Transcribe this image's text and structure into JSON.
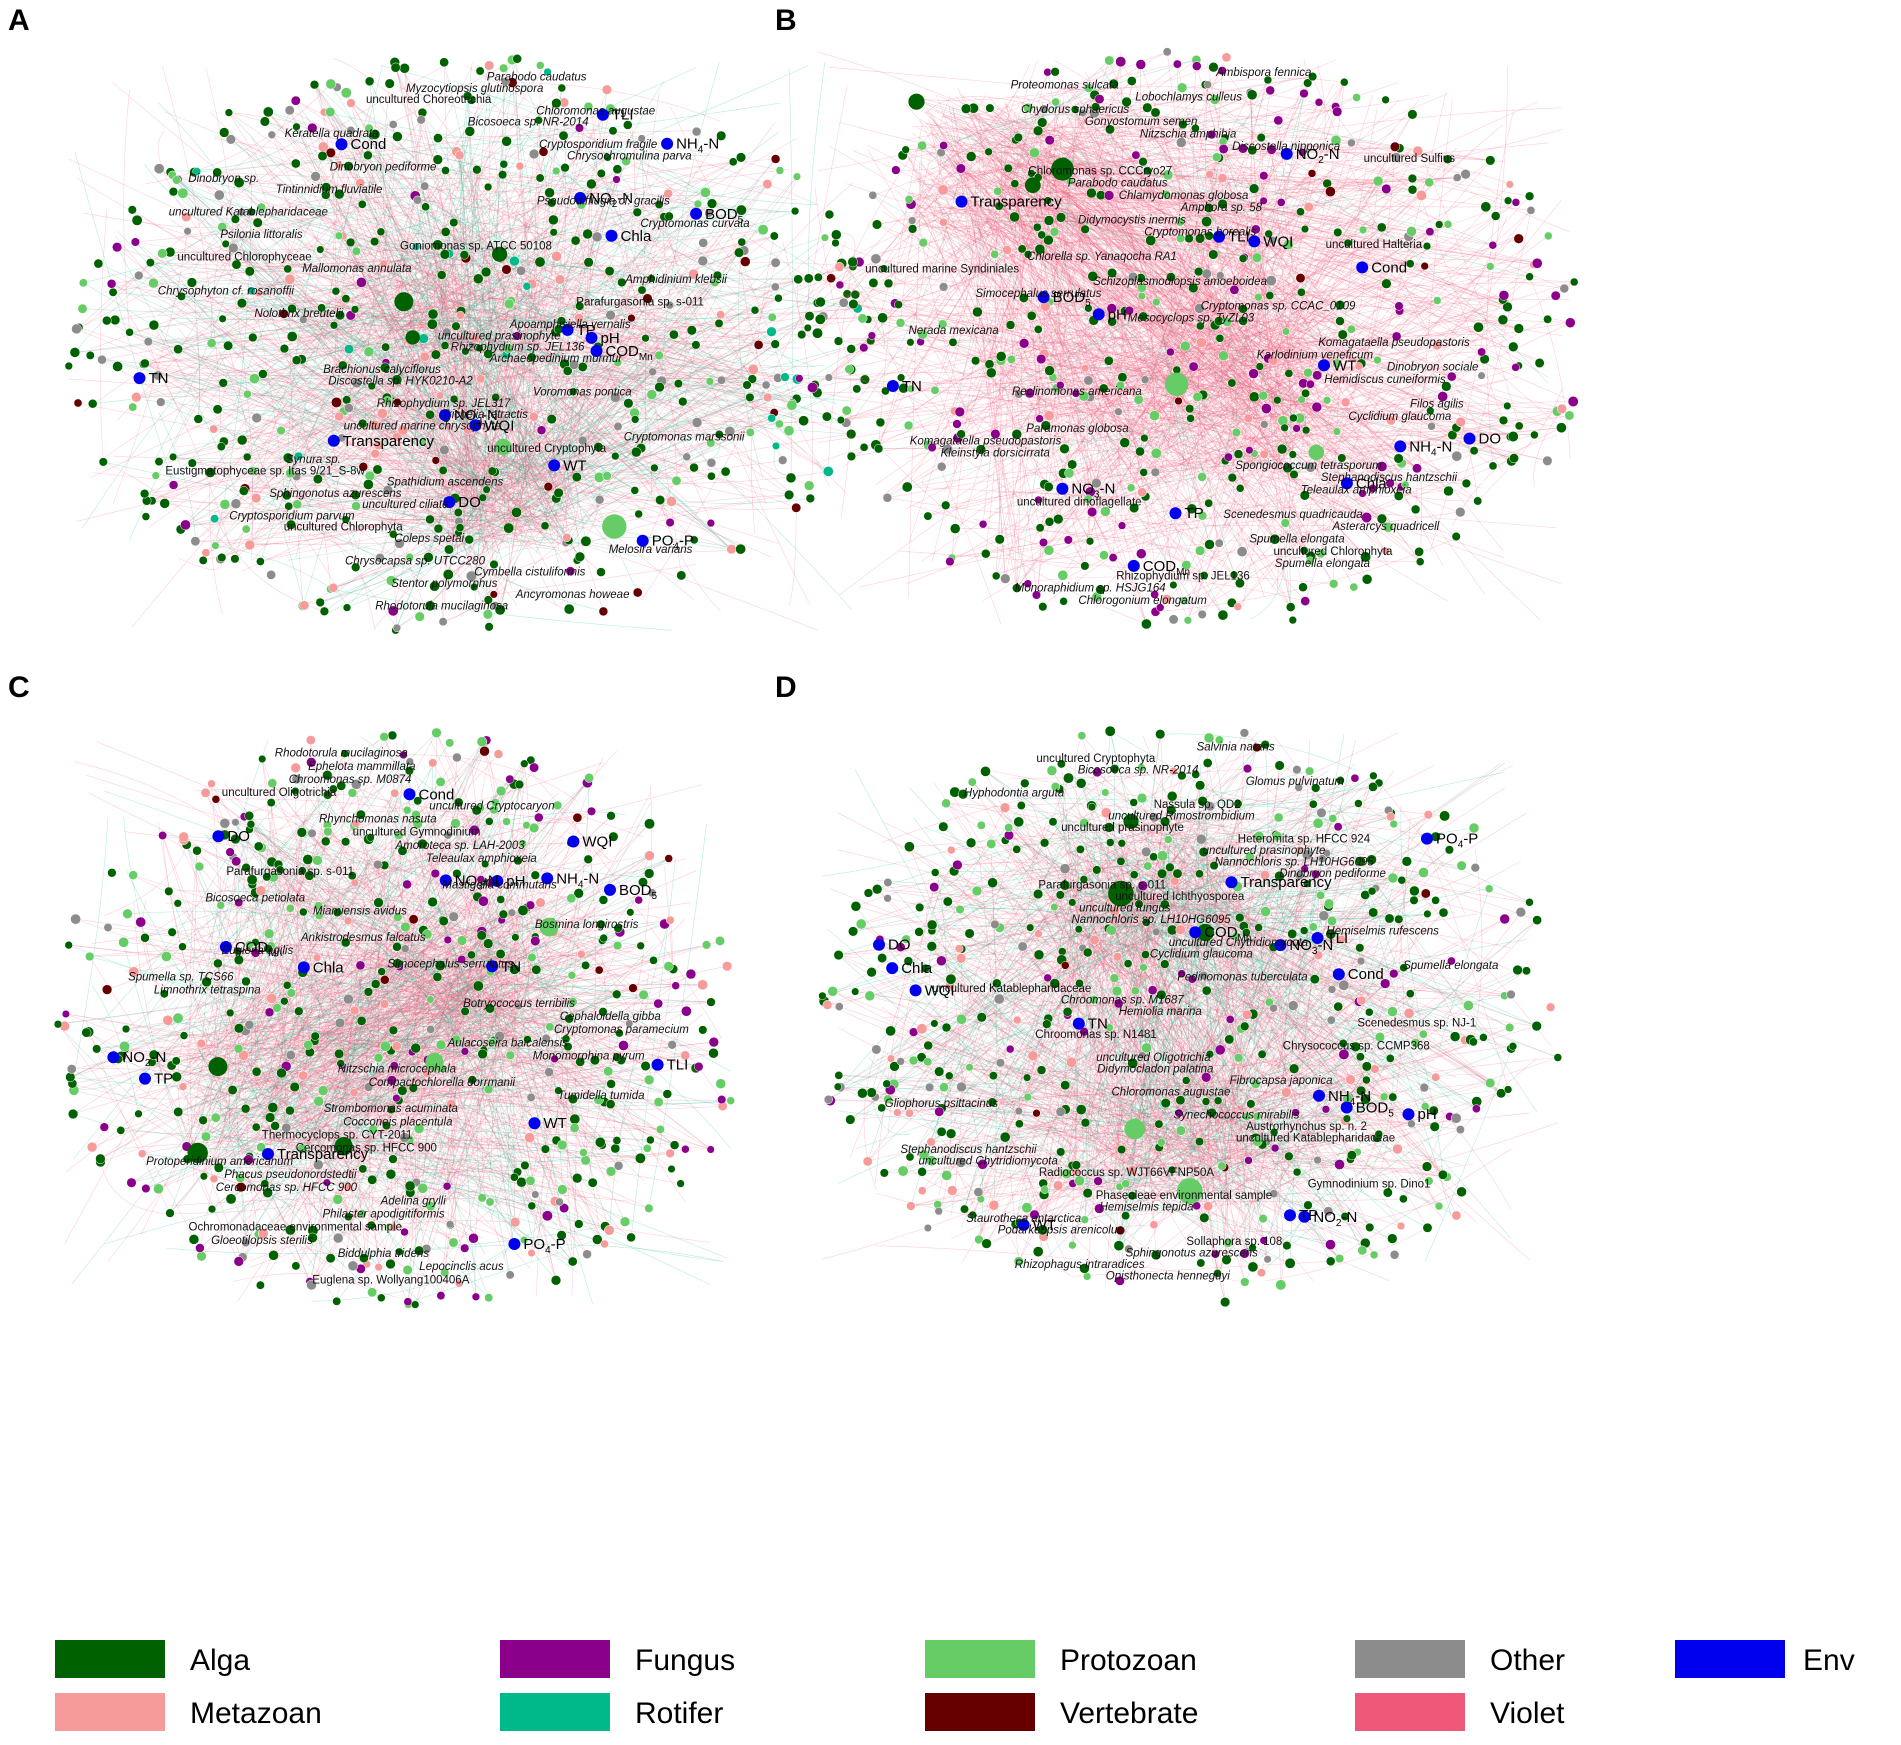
{
  "colors": {
    "alga": "#006100",
    "metazoan": "#f79a9a",
    "fungus": "#8b008b",
    "rotifer": "#00b98a",
    "protozoan": "#66cc66",
    "vertebrate": "#660000",
    "other": "#8c8c8c",
    "violet": "#f0587a",
    "env": "#0000ee"
  },
  "legend": [
    {
      "label": "Alga",
      "color": "#006100"
    },
    {
      "label": "Metazoan",
      "color": "#f79a9a"
    },
    {
      "label": "Fungus",
      "color": "#8b008b"
    },
    {
      "label": "Rotifer",
      "color": "#00b98a"
    },
    {
      "label": "Protozoan",
      "color": "#66cc66"
    },
    {
      "label": "Vertebrate",
      "color": "#660000"
    },
    {
      "label": "Other",
      "color": "#8c8c8c"
    },
    {
      "label": "Violet",
      "color": "#f0587a"
    },
    {
      "label": "Env",
      "color": "#0000ee"
    }
  ],
  "panels": [
    {
      "letter": "A",
      "mix": {
        "alga": 0.55,
        "protozoan": 0.12,
        "metazoan": 0.08,
        "fungus": 0.03,
        "other": 0.14,
        "vertebrate": 0.05,
        "rotifer": 0.03
      },
      "edge_mix": {
        "violet": 0.7,
        "rotifer": 0.3
      },
      "env": [
        {
          "name": "Chla",
          "sub": ""
        },
        {
          "name": "NO",
          "sub": "3",
          "suffix": "-N"
        },
        {
          "name": "PO",
          "sub": "4",
          "suffix": "-P"
        },
        {
          "name": "TP",
          "sub": ""
        },
        {
          "name": "TLI",
          "sub": ""
        },
        {
          "name": "TN",
          "sub": ""
        },
        {
          "name": "WT",
          "sub": ""
        },
        {
          "name": "WQI",
          "sub": ""
        },
        {
          "name": "Cond",
          "sub": ""
        },
        {
          "name": "NO",
          "sub": "2",
          "suffix": "-N"
        },
        {
          "name": "COD",
          "sub": "Mn"
        },
        {
          "name": "BOD",
          "sub": "5"
        },
        {
          "name": "pH",
          "sub": ""
        },
        {
          "name": "Transparency",
          "sub": ""
        },
        {
          "name": "NH",
          "sub": "4",
          "suffix": "-N"
        },
        {
          "name": "DO",
          "sub": ""
        }
      ],
      "taxa": [
        "Parabodo caudatus",
        "Myzocytiopsis glutinospora",
        "uncultured Choreotrichia",
        "Chloromonas augustae",
        "Bicosoeca sp. NR-2014",
        "Keratella quadrata",
        "Cryptosporidium fragile",
        "Chrysochromulina parva",
        "Dinobryon pediforme",
        "Dinobryon sp.",
        "Tintinnidium fluviatile",
        "Pseudodifflugia cf. gracilis",
        "uncultured Katablepharidaceae",
        "Cryptomonas curvata",
        "Psilonia littoralis",
        "Goniomonas sp. ATCC 50108",
        "uncultured Chlorophyceae",
        "Mallomonas annulata",
        "Amphidinium klebsii",
        "Chrysophyton cf. rosanoffii",
        "Parafurgasonia sp. s-011",
        "Nolothrix breutelii",
        "Apoamphisiella vernalis",
        "uncultured prasinophyte",
        "Rhizophydium sp. JEL136",
        "Archaeopedinium murmur",
        "Brachionus calyciflorus",
        "Discostella sp. HYK0210-A2",
        "Voromonas pontica",
        "Rhizophydium sp. JEL317",
        "Trichelia tetractis",
        "uncultured marine chrysophyte",
        "Cryptomonas marssonii",
        "uncultured Cryptophyta",
        "Synura sp.",
        "Eustigmatophyceae sp. Itas 9/21_S-8w",
        "Spathidium ascendens",
        "Sphingonotus azurescens",
        "uncultured ciliate",
        "Cryptosporidium parvum",
        "uncultured Chlorophyta",
        "Coleps spetai",
        "Melosira varians",
        "Chrysocapsa sp. UTCC280",
        "Cymbella cistuliformis",
        "Stentor polymorphus",
        "Ancyromonas howeae",
        "Rhodotorula mucilaginosa"
      ]
    },
    {
      "letter": "B",
      "mix": {
        "alga": 0.5,
        "protozoan": 0.16,
        "fungus": 0.16,
        "metazoan": 0.06,
        "other": 0.1,
        "vertebrate": 0.02
      },
      "edge_mix": {
        "violet": 0.95,
        "rotifer": 0.05
      },
      "env": [
        {
          "name": "pH",
          "sub": ""
        },
        {
          "name": "Transparency",
          "sub": ""
        },
        {
          "name": "Chla",
          "sub": ""
        },
        {
          "name": "Cond",
          "sub": ""
        },
        {
          "name": "TLI",
          "sub": ""
        },
        {
          "name": "WT",
          "sub": ""
        },
        {
          "name": "TP",
          "sub": ""
        },
        {
          "name": "TN",
          "sub": ""
        },
        {
          "name": "DO",
          "sub": ""
        },
        {
          "name": "BOD",
          "sub": "5"
        },
        {
          "name": "WQI",
          "sub": ""
        },
        {
          "name": "NH",
          "sub": "4",
          "suffix": "-N"
        },
        {
          "name": "COD",
          "sub": "Mn"
        },
        {
          "name": "NO",
          "sub": "2",
          "suffix": "-N"
        },
        {
          "name": "NO",
          "sub": "3",
          "suffix": "-N"
        }
      ],
      "taxa": [
        "Ambispora fennica",
        "Proteomonas sulcata",
        "Lobochlamys culleus",
        "Chydorus sphaericus",
        "Gonyostomum semen",
        "Nitzschia amphibia",
        "Discostella nipponica",
        "uncultured Sulfius",
        "Chloromonas sp. CCCryo27",
        "Parabodo caudatus",
        "Chlamydomonas globosa",
        "Amphora sp. 58",
        "Didymocystis inermis",
        "Cryptomonas borealis",
        "uncultured Halteria",
        "Chlorella sp. Yanaqocha RA1",
        "uncultured marine Syndiniales",
        "Schizoplasmodiopsis amoeboidea",
        "Simocephalus serrulatus",
        "Cryptomonas sp. CCAC_0109",
        "Mesocyclops sp. TyZL03",
        "Nerada mexicana",
        "Komagataella pseudopastoris",
        "Karlodinium veneficum",
        "Dinobryon sociale",
        "Hemidiscus cuneiformis",
        "Reclinomonas americana",
        "Filos agilis",
        "Cyclidium glaucoma",
        "Paramonas globosa",
        "Komagataella pseudopastoris",
        "Kleinstyla dorsicirrata",
        "Spongiococcum tetrasporum",
        "Stephanodiscus hantzschii",
        "Teleaulax amphioxeia",
        "uncultured dinoflagellate",
        "Scenedesmus quadricauda",
        "Asterarcys quadricell",
        "Spumella elongata",
        "uncultured Chlorophyta",
        "Spumella elongata",
        "Rhizophydium sp. JEL136",
        "Monoraphidium sp. HSJG164",
        "Chlorogonium elongatum"
      ]
    },
    {
      "letter": "C",
      "mix": {
        "alga": 0.45,
        "protozoan": 0.22,
        "fungus": 0.12,
        "metazoan": 0.1,
        "other": 0.09,
        "vertebrate": 0.02
      },
      "edge_mix": {
        "violet": 0.75,
        "rotifer": 0.25
      },
      "env": [
        {
          "name": "PO",
          "sub": "4",
          "suffix": "-P"
        },
        {
          "name": "NO",
          "sub": "2",
          "suffix": "-N"
        },
        {
          "name": "TP",
          "sub": ""
        },
        {
          "name": "WQI",
          "sub": ""
        },
        {
          "name": "TN",
          "sub": ""
        },
        {
          "name": "NH",
          "sub": "4",
          "suffix": "-N"
        },
        {
          "name": "TLI",
          "sub": ""
        },
        {
          "name": "BOD",
          "sub": "5"
        },
        {
          "name": "Transparency",
          "sub": ""
        },
        {
          "name": "COD",
          "sub": "Mn"
        },
        {
          "name": "Chla",
          "sub": ""
        },
        {
          "name": "pH",
          "sub": ""
        },
        {
          "name": "NO",
          "sub": "3",
          "suffix": "-N"
        },
        {
          "name": "DO",
          "sub": ""
        },
        {
          "name": "Cond",
          "sub": ""
        },
        {
          "name": "WT",
          "sub": ""
        }
      ],
      "taxa": [
        "Rhodotorula mucilaginosa",
        "Ephelota mammillata",
        "Chroomonas sp. M0874",
        "uncultured Oligotrichia",
        "uncultured Cryptocaryon",
        "Rhynchomonas nasuta",
        "uncultured Gymnodinium",
        "Amoroteca sp. LAH-2003",
        "Teleaulax amphioxeia",
        "Parafurgasonia sp. s-011",
        "Mastigella commutans",
        "Bicosoeca petiolata",
        "Miamiensis avidus",
        "Bosmina longirostris",
        "Ankistrodesmus falcatus",
        "Euglena agilis",
        "Simocephalus serrulatus",
        "Spumella sp. TCS66",
        "Limnothrix tetraspina",
        "Botryococcus terribilis",
        "Cephaloidella gibba",
        "Cryptomonas paramecium",
        "Aulacoseira baicalensis",
        "Monomorphina pyrum",
        "Nitzschia microcephala",
        "Compactochlorella dorrmanii",
        "Tumidella tumida",
        "Strombomonas acuminata",
        "Cocconeis placentula",
        "Thermocyclops sp. CYT-2011",
        "Cercomonas sp. HFCC 900",
        "Protoperidinium americanum",
        "Phacus pseudonordstedtii",
        "Cercomonas sp. HFCC 900",
        "Adelina grylli",
        "Philaster apodigitiformis",
        "Ochromonadaceae environmental sample",
        "Gloeotilopsis sterilis",
        "Biddulphia tridens",
        "Lepocinclis acus",
        "Euglena sp. Wollyang100406A"
      ]
    },
    {
      "letter": "D",
      "mix": {
        "alga": 0.48,
        "protozoan": 0.2,
        "fungus": 0.1,
        "metazoan": 0.1,
        "other": 0.1,
        "vertebrate": 0.02
      },
      "edge_mix": {
        "violet": 0.72,
        "rotifer": 0.28
      },
      "env": [
        {
          "name": "COD",
          "sub": "Mn"
        },
        {
          "name": "TLI",
          "sub": ""
        },
        {
          "name": "BOD",
          "sub": "5"
        },
        {
          "name": "Transparency",
          "sub": ""
        },
        {
          "name": "TP",
          "sub": ""
        },
        {
          "name": "Cond",
          "sub": ""
        },
        {
          "name": "TN",
          "sub": ""
        },
        {
          "name": "Chla",
          "sub": ""
        },
        {
          "name": "DO",
          "sub": ""
        },
        {
          "name": "NO",
          "sub": "3",
          "suffix": "-N"
        },
        {
          "name": "WT",
          "sub": ""
        },
        {
          "name": "NH",
          "sub": "4",
          "suffix": "-N"
        },
        {
          "name": "WQI",
          "sub": ""
        },
        {
          "name": "PO",
          "sub": "4",
          "suffix": "-P"
        },
        {
          "name": "pH",
          "sub": ""
        },
        {
          "name": "NO",
          "sub": "2",
          "suffix": "-N"
        }
      ],
      "taxa": [
        "Salvinia natans",
        "uncultured Cryptophyta",
        "Bicosoeca sp. NR-2014",
        "Glomus pulvinatum",
        "Hyphodontia arguta",
        "Nassula sp. QD2",
        "uncultured Rimostrombidium",
        "uncultured prasinophyte",
        "Heteromita sp. HFCC 924",
        "uncultured prasinophyte",
        "Nannochloris sp. LH10HG6095",
        "Dinobryon pediforme",
        "Parafurgasonia sp. s-011",
        "uncultured Ichthyosporea",
        "uncultured fungus",
        "Nannochloris sp. LH10HG6095",
        "Hemiselmis rufescens",
        "uncultured Chytridiomycota",
        "Cyclidium glaucoma",
        "Spumella elongata",
        "Pedinomonas tuberculata",
        "uncultured Katablepharidaceae",
        "Chroomonas sp. M1687",
        "Hemiolia marina",
        "Scenedesmus sp. NJ-1",
        "Chroomonas sp. N1481",
        "Chrysococcus sp. CCMP368",
        "uncultured Oligotrichia",
        "Didymocladon palatina",
        "Fibrocapsa japonica",
        "Chloromonas augustae",
        "Gliophorus psittacinus",
        "Synechococcus mirabilis",
        "Austrorhynchus sp. n. 2",
        "uncultured Katablepharidaceae",
        "Stephanodiscus hantzschii",
        "uncultured Chytridiomycota",
        "Radiococcus sp. WJT66VFNP50A",
        "Gymnodinium sp. Dino1",
        "Phaseoleae environmental sample",
        "Hemiselmis tepida",
        "Staurotheca antarctica",
        "Podarkeopsis arenicolus",
        "Sollaphora sp. 108",
        "Sphingonotus azurescens",
        "Rhizophagus intraradices",
        "Opisthonecta henneguyi"
      ]
    }
  ]
}
